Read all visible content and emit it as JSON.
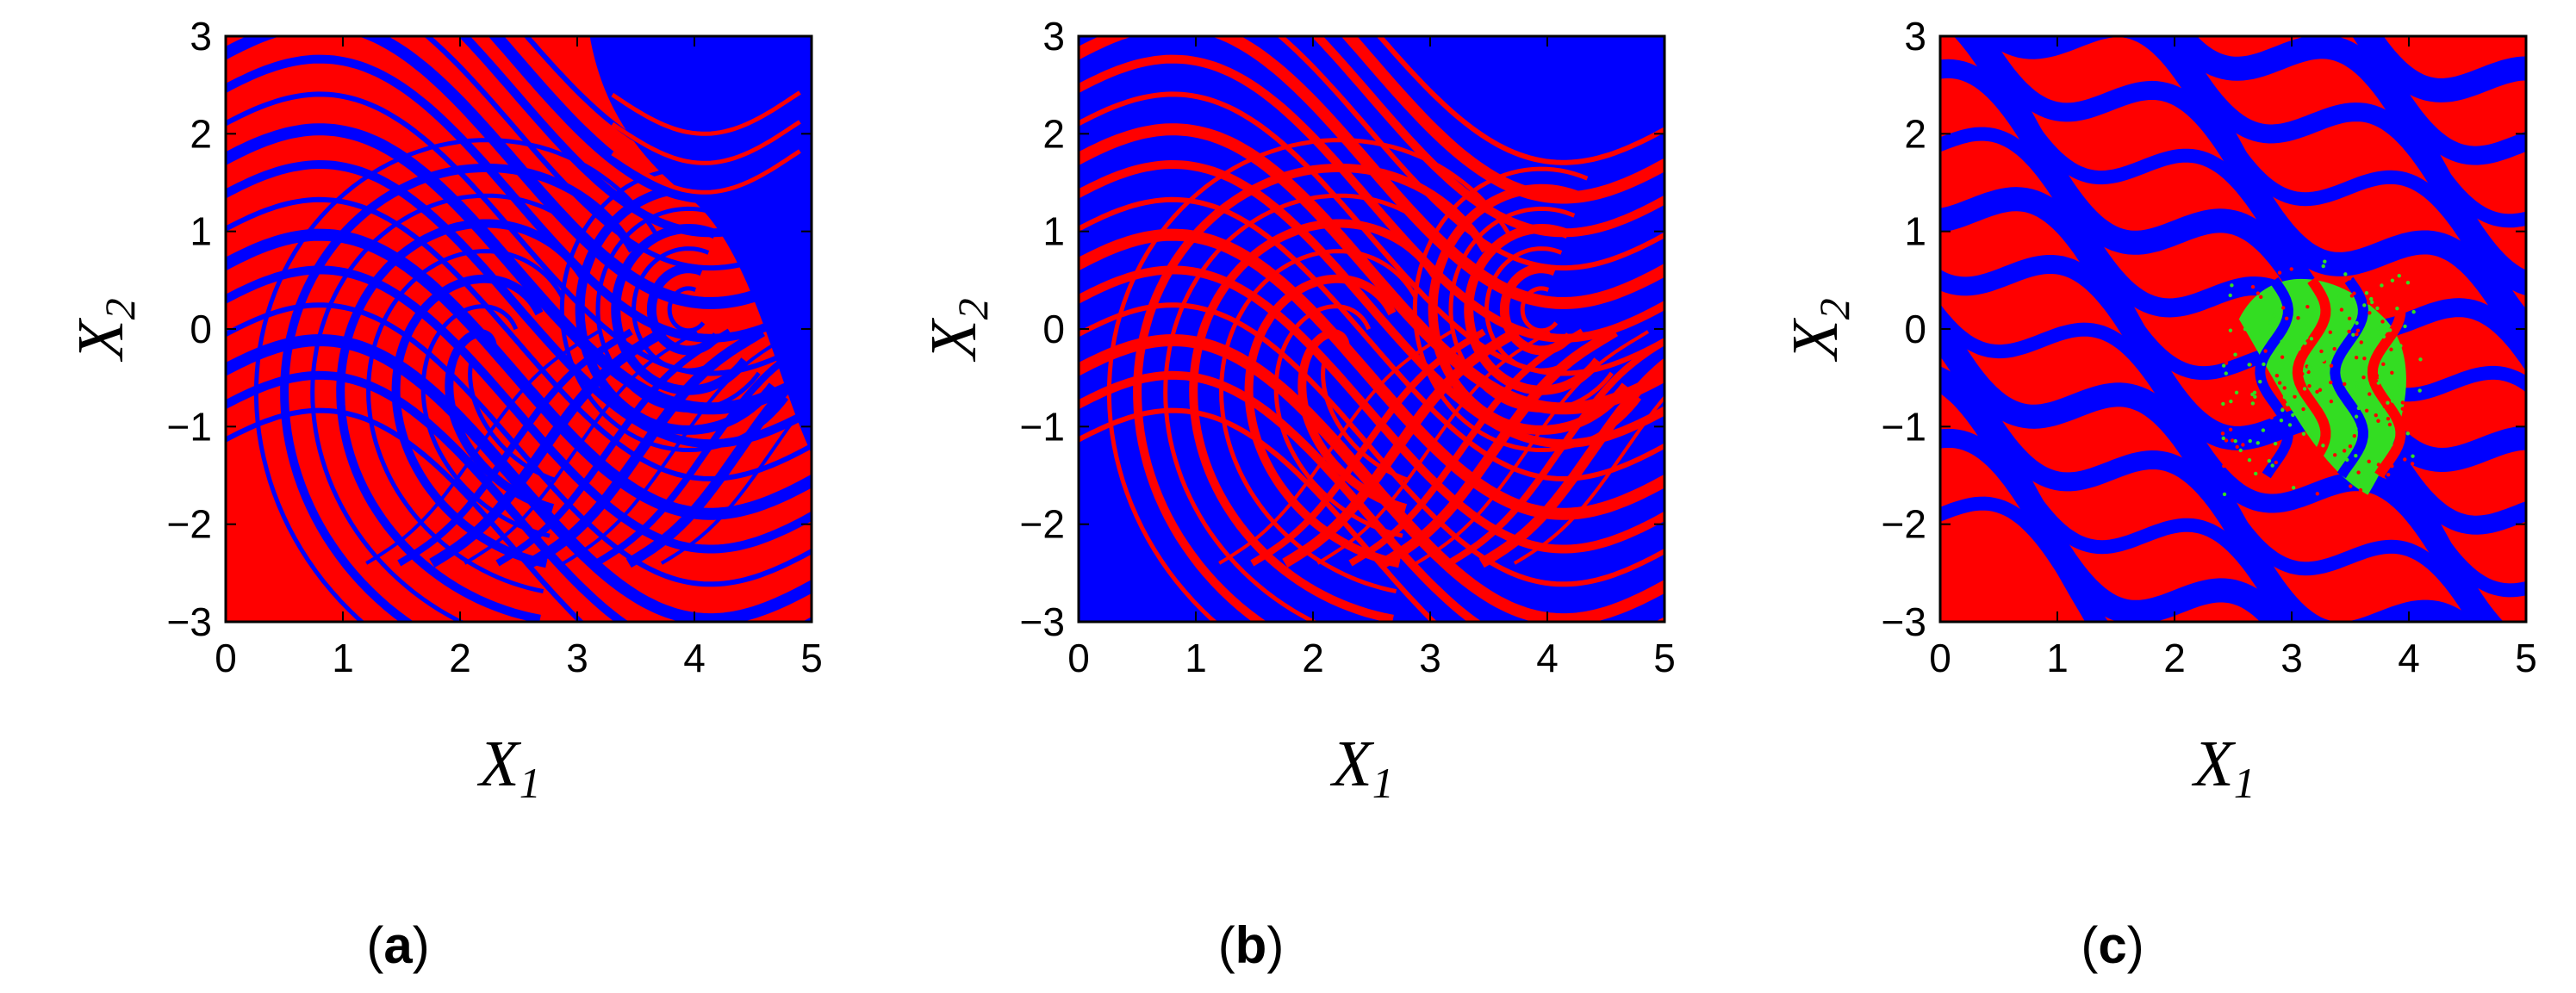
{
  "figure": {
    "colors": {
      "red": "#ff0000",
      "blue": "#0000ff",
      "green": "#33dd22",
      "frame": "#000000"
    }
  },
  "chart_data": [
    {
      "type": "heatmap",
      "caption": {
        "open": "(",
        "letter": "a",
        "close": ")"
      },
      "xlabel": {
        "symbol": "X",
        "subscript": "1"
      },
      "ylabel": {
        "symbol": "X",
        "subscript": "2"
      },
      "xlim": [
        0,
        5
      ],
      "ylim": [
        -3,
        3
      ],
      "xticks": [
        0,
        1,
        2,
        3,
        4,
        5
      ],
      "yticks": [
        3,
        2,
        1,
        0,
        -1,
        -2,
        -3
      ],
      "xtick_labels": [
        "0",
        "1",
        "2",
        "3",
        "4",
        "5"
      ],
      "ytick_labels": [
        "3",
        "2",
        "1",
        "0",
        "−1",
        "−2",
        "−3"
      ],
      "legend": "none",
      "grid": false,
      "base_color": "red",
      "stripe_color": "blue",
      "large_region": {
        "color": "blue",
        "location": "top-right"
      }
    },
    {
      "type": "heatmap",
      "caption": {
        "open": "(",
        "letter": "b",
        "close": ")"
      },
      "xlabel": {
        "symbol": "X",
        "subscript": "1"
      },
      "ylabel": {
        "symbol": "X",
        "subscript": "2"
      },
      "xlim": [
        0,
        5
      ],
      "ylim": [
        -3,
        3
      ],
      "xticks": [
        0,
        1,
        2,
        3,
        4,
        5
      ],
      "yticks": [
        3,
        2,
        1,
        0,
        -1,
        -2,
        -3
      ],
      "xtick_labels": [
        "0",
        "1",
        "2",
        "3",
        "4",
        "5"
      ],
      "ytick_labels": [
        "3",
        "2",
        "1",
        "0",
        "−1",
        "−2",
        "−3"
      ],
      "legend": "none",
      "grid": false,
      "base_color": "blue",
      "stripe_color": "red"
    },
    {
      "type": "heatmap",
      "caption": {
        "open": "(",
        "letter": "c",
        "close": ")"
      },
      "xlabel": {
        "symbol": "X",
        "subscript": "1"
      },
      "ylabel": {
        "symbol": "X",
        "subscript": "2"
      },
      "xlim": [
        0,
        5
      ],
      "ylim": [
        -3,
        3
      ],
      "xticks": [
        0,
        1,
        2,
        3,
        4,
        5
      ],
      "yticks": [
        3,
        2,
        1,
        0,
        -1,
        -2,
        -3
      ],
      "xtick_labels": [
        "0",
        "1",
        "2",
        "3",
        "4",
        "5"
      ],
      "ytick_labels": [
        "3",
        "2",
        "1",
        "0",
        "−1",
        "−2",
        "−3"
      ],
      "legend": "none",
      "grid": false,
      "base_color": "red",
      "stripe_color": "blue",
      "inner_region": {
        "color": "green",
        "x_range": [
          2.4,
          4.1
        ],
        "y_range": [
          -1.7,
          0.7
        ]
      }
    }
  ]
}
